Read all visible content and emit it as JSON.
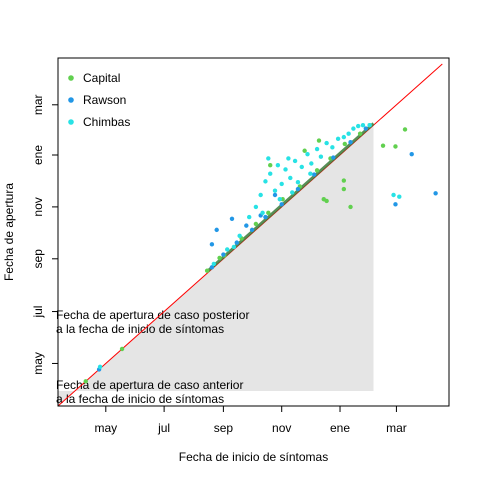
{
  "chart_data": {
    "type": "scatter",
    "title": "",
    "xlabel": "Fecha de inicio de síntomas",
    "ylabel": "Fecha de apertura",
    "x_ticks": [
      "may",
      "jul",
      "sep",
      "nov",
      "ene",
      "mar"
    ],
    "y_ticks": [
      "may",
      "jul",
      "sep",
      "nov",
      "ene",
      "mar"
    ],
    "xlim": [
      "2020-03-12",
      "2021-04-25"
    ],
    "ylim": [
      "2020-03-12",
      "2021-04-25"
    ],
    "grid": false,
    "legend_placement": "top-left",
    "reference_line": {
      "color": "#ff0000",
      "from": "2020-03-12",
      "to": "2021-04-18"
    },
    "shaded_region": {
      "color": "#e5e5e5",
      "x_range": [
        "2020-03-12",
        "2021-02-05"
      ]
    },
    "annotations": [
      {
        "lines": [
          "Fecha de apertura de caso posterior",
          "a la fecha de inicio de síntomas"
        ]
      },
      {
        "lines": [
          "Fecha de apertura de caso anterior",
          "a la fecha de inicio de síntomas"
        ]
      }
    ],
    "series": [
      {
        "name": "Capital",
        "color": "#61d04f",
        "points": [
          [
            "2020-04-10",
            "2020-04-10"
          ],
          [
            "2020-05-18",
            "2020-05-18"
          ],
          [
            "2020-08-15",
            "2020-08-18"
          ],
          [
            "2020-08-28",
            "2020-09-02"
          ],
          [
            "2020-09-20",
            "2020-09-25"
          ],
          [
            "2020-10-05",
            "2020-10-12"
          ],
          [
            "2020-10-18",
            "2020-10-25"
          ],
          [
            "2020-11-02",
            "2020-11-10"
          ],
          [
            "2020-11-20",
            "2020-11-25"
          ],
          [
            "2020-12-08",
            "2020-12-14"
          ],
          [
            "2020-12-22",
            "2020-12-28"
          ],
          [
            "2021-01-06",
            "2021-01-14"
          ],
          [
            "2021-01-22",
            "2021-01-26"
          ],
          [
            "2021-02-01",
            "2021-02-05"
          ],
          [
            "2020-10-20",
            "2020-12-20"
          ],
          [
            "2020-11-25",
            "2021-01-06"
          ],
          [
            "2020-12-10",
            "2021-01-18"
          ],
          [
            "2020-12-15",
            "2020-11-10"
          ],
          [
            "2020-12-18",
            "2020-11-08"
          ],
          [
            "2021-01-05",
            "2020-12-02"
          ],
          [
            "2021-01-05",
            "2020-11-22"
          ],
          [
            "2021-02-15",
            "2021-01-12"
          ],
          [
            "2021-03-10",
            "2021-01-31"
          ],
          [
            "2021-02-28",
            "2021-01-11"
          ],
          [
            "2021-01-12",
            "2020-11-01"
          ],
          [
            "2020-09-02",
            "2020-09-05"
          ]
        ]
      },
      {
        "name": "Rawson",
        "color": "#2297e6",
        "points": [
          [
            "2020-04-24",
            "2020-04-24"
          ],
          [
            "2020-08-20",
            "2020-08-22"
          ],
          [
            "2020-09-01",
            "2020-09-06"
          ],
          [
            "2020-09-15",
            "2020-09-20"
          ],
          [
            "2020-10-01",
            "2020-10-05"
          ],
          [
            "2020-10-15",
            "2020-10-20"
          ],
          [
            "2020-11-01",
            "2020-11-04"
          ],
          [
            "2020-11-18",
            "2020-11-22"
          ],
          [
            "2020-12-05",
            "2020-12-09"
          ],
          [
            "2020-12-25",
            "2020-12-29"
          ],
          [
            "2021-01-12",
            "2021-01-16"
          ],
          [
            "2021-01-28",
            "2021-02-01"
          ],
          [
            "2020-08-25",
            "2020-10-05"
          ],
          [
            "2020-09-10",
            "2020-10-18"
          ],
          [
            "2020-09-25",
            "2020-10-10"
          ],
          [
            "2020-10-25",
            "2020-11-15"
          ],
          [
            "2020-08-20",
            "2020-09-18"
          ],
          [
            "2021-02-28",
            "2020-11-04"
          ],
          [
            "2021-04-11",
            "2020-11-17"
          ],
          [
            "2021-03-17",
            "2021-01-02"
          ],
          [
            "2020-10-10",
            "2020-10-22"
          ]
        ]
      },
      {
        "name": "Chimbas",
        "color": "#28e2e5",
        "points": [
          [
            "2020-08-22",
            "2020-08-26"
          ],
          [
            "2020-09-05",
            "2020-09-12"
          ],
          [
            "2020-09-18",
            "2020-09-28"
          ],
          [
            "2020-09-28",
            "2020-10-20"
          ],
          [
            "2020-10-05",
            "2020-11-01"
          ],
          [
            "2020-10-10",
            "2020-11-15"
          ],
          [
            "2020-10-15",
            "2020-12-01"
          ],
          [
            "2020-10-20",
            "2020-12-10"
          ],
          [
            "2020-10-25",
            "2020-11-20"
          ],
          [
            "2020-10-28",
            "2020-12-20"
          ],
          [
            "2020-11-01",
            "2020-11-28"
          ],
          [
            "2020-11-05",
            "2020-12-15"
          ],
          [
            "2020-11-10",
            "2020-12-05"
          ],
          [
            "2020-11-15",
            "2020-12-25"
          ],
          [
            "2020-11-18",
            "2020-11-30"
          ],
          [
            "2020-11-22",
            "2020-12-18"
          ],
          [
            "2020-11-28",
            "2021-01-02"
          ],
          [
            "2020-12-02",
            "2020-12-22"
          ],
          [
            "2020-12-08",
            "2021-01-08"
          ],
          [
            "2020-12-12",
            "2020-12-30"
          ],
          [
            "2020-12-18",
            "2021-01-15"
          ],
          [
            "2020-12-24",
            "2021-01-10"
          ],
          [
            "2020-12-30",
            "2021-01-20"
          ],
          [
            "2021-01-05",
            "2021-01-22"
          ],
          [
            "2021-01-10",
            "2021-01-26"
          ],
          [
            "2021-01-15",
            "2021-02-01"
          ],
          [
            "2021-01-20",
            "2021-02-04"
          ],
          [
            "2021-01-25",
            "2021-02-05"
          ],
          [
            "2021-02-01",
            "2021-02-05"
          ],
          [
            "2020-10-12",
            "2020-10-25"
          ],
          [
            "2020-10-30",
            "2020-11-10"
          ],
          [
            "2020-11-12",
            "2020-11-18"
          ],
          [
            "2020-12-01",
            "2020-12-10"
          ],
          [
            "2021-02-26",
            "2020-11-15"
          ],
          [
            "2021-03-04",
            "2020-11-13"
          ],
          [
            "2020-10-18",
            "2020-12-28"
          ],
          [
            "2020-11-08",
            "2020-12-28"
          ],
          [
            "2020-09-12",
            "2020-09-15"
          ],
          [
            "2020-04-25",
            "2020-04-27"
          ]
        ]
      }
    ]
  }
}
